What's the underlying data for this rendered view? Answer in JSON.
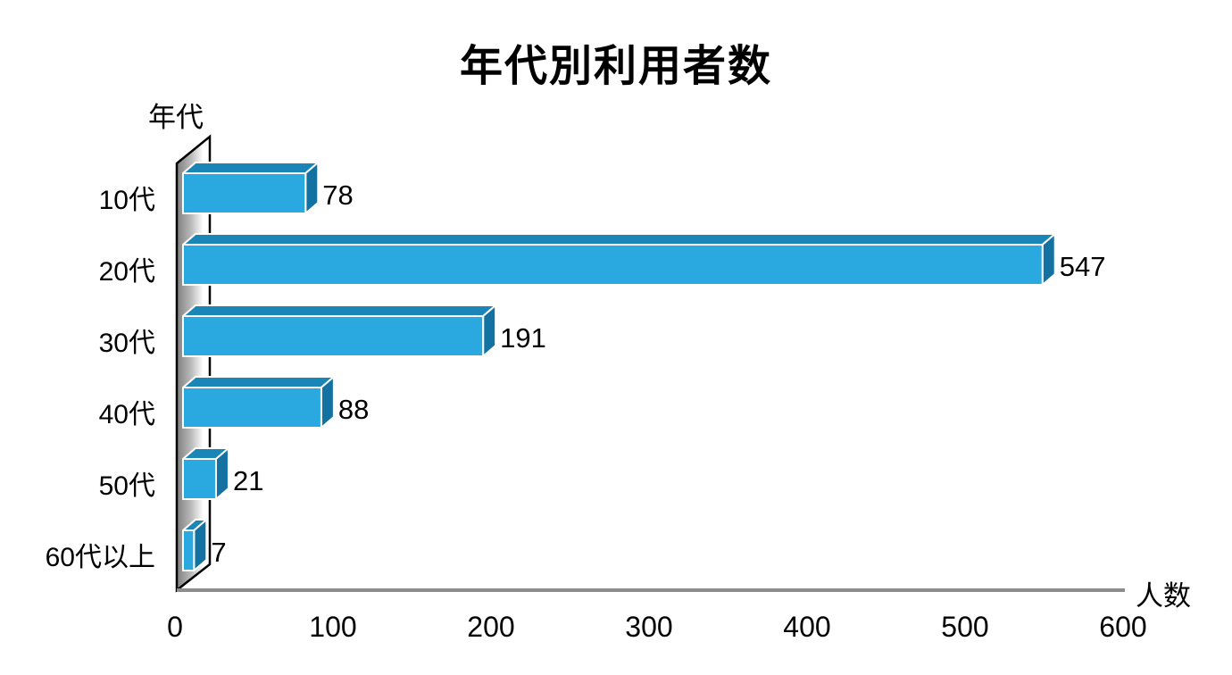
{
  "chart_data": {
    "type": "bar",
    "orientation": "horizontal",
    "style": "3d",
    "title": "年代別利用者数",
    "ylabel": "年代",
    "xlabel": "人数",
    "categories": [
      "10代",
      "20代",
      "30代",
      "40代",
      "50代",
      "60代以上"
    ],
    "values": [
      78,
      547,
      191,
      88,
      21,
      7
    ],
    "value_labels": [
      "78",
      "547",
      "191",
      "88",
      "21",
      "7"
    ],
    "xticks": [
      0,
      100,
      200,
      300,
      400,
      500,
      600
    ],
    "xlim": [
      0,
      600
    ],
    "grid": false,
    "legend": null,
    "colors": {
      "bar_front": "#29A9E0",
      "bar_top": "#1A85B7",
      "bar_side": "#1372A2",
      "bar_edge": "#FFFFFF",
      "wall_edge": "#000000",
      "wall_shade_dark": "#7E7E7E",
      "wall_shade_mid": "#BDBDBD",
      "wall_shade_light": "#FFFFFF",
      "axis_line": "#8C8C8C",
      "text": "#000000",
      "background": "#FFFFFF"
    }
  }
}
